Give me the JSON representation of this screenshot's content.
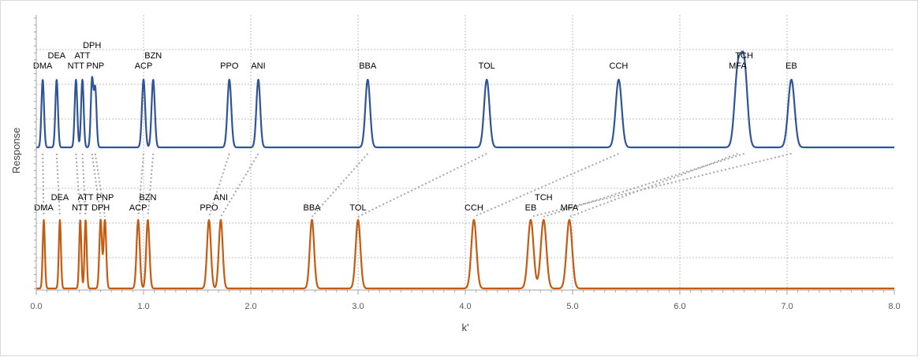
{
  "chart_data": {
    "type": "line",
    "xlabel": "k'",
    "ylabel": "Response",
    "xlim": [
      0,
      8
    ],
    "x_ticks": [
      "0.0",
      "1.0",
      "2.0",
      "3.0",
      "4.0",
      "5.0",
      "6.0",
      "7.0",
      "8.0"
    ],
    "x_minor_step": 0.1,
    "grid": "dotted vertical lines at 1.0 steps; dotted horizontal lines in each trace band",
    "colors": {
      "top": "#2f5597",
      "bottom": "#c55a11",
      "connector": "#a6a6a6",
      "grid": "#bfbfbf"
    },
    "series": [
      {
        "peaks": [
          {
            "label": "DMA",
            "k": 0.06,
            "h": 1.0,
            "w": 0.012
          },
          {
            "label": "DEA",
            "k": 0.19,
            "h": 1.0,
            "w": 0.012
          },
          {
            "label": "NTT",
            "k": 0.37,
            "h": 1.0,
            "w": 0.012
          },
          {
            "label": "ATT",
            "k": 0.43,
            "h": 1.0,
            "w": 0.012
          },
          {
            "label": "DPH",
            "k": 0.52,
            "h": 1.0,
            "w": 0.012
          },
          {
            "label": "PNP",
            "k": 0.55,
            "h": 0.86,
            "w": 0.012
          },
          {
            "label": "ACP",
            "k": 1.0,
            "h": 1.0,
            "w": 0.015
          },
          {
            "label": "BZN",
            "k": 1.09,
            "h": 1.0,
            "w": 0.015
          },
          {
            "label": "PPO",
            "k": 1.8,
            "h": 1.0,
            "w": 0.018
          },
          {
            "label": "ANI",
            "k": 2.07,
            "h": 1.0,
            "w": 0.018
          },
          {
            "label": "BBA",
            "k": 3.09,
            "h": 1.0,
            "w": 0.022
          },
          {
            "label": "TOL",
            "k": 4.2,
            "h": 1.0,
            "w": 0.025
          },
          {
            "label": "CCH",
            "k": 5.43,
            "h": 1.0,
            "w": 0.028
          },
          {
            "label": "MFA",
            "k": 6.54,
            "h": 1.1,
            "w": 0.03
          },
          {
            "label": "TCH",
            "k": 6.6,
            "h": 1.2,
            "w": 0.03
          },
          {
            "label": "EB",
            "k": 7.04,
            "h": 1.0,
            "w": 0.03
          }
        ]
      },
      {
        "peaks": [
          {
            "label": "DMA",
            "k": 0.07,
            "h": 1.0,
            "w": 0.01
          },
          {
            "label": "DEA",
            "k": 0.22,
            "h": 1.0,
            "w": 0.01
          },
          {
            "label": "NTT",
            "k": 0.41,
            "h": 1.0,
            "w": 0.01
          },
          {
            "label": "ATT",
            "k": 0.46,
            "h": 1.0,
            "w": 0.01
          },
          {
            "label": "DPH",
            "k": 0.6,
            "h": 1.0,
            "w": 0.012
          },
          {
            "label": "PNP",
            "k": 0.64,
            "h": 1.0,
            "w": 0.012
          },
          {
            "label": "ACP",
            "k": 0.95,
            "h": 1.0,
            "w": 0.015
          },
          {
            "label": "BZN",
            "k": 1.04,
            "h": 1.0,
            "w": 0.015
          },
          {
            "label": "PPO",
            "k": 1.61,
            "h": 1.0,
            "w": 0.018
          },
          {
            "label": "ANI",
            "k": 1.72,
            "h": 1.0,
            "w": 0.018
          },
          {
            "label": "BBA",
            "k": 2.57,
            "h": 1.0,
            "w": 0.02
          },
          {
            "label": "TOL",
            "k": 3.0,
            "h": 1.0,
            "w": 0.022
          },
          {
            "label": "CCH",
            "k": 4.08,
            "h": 1.0,
            "w": 0.024
          },
          {
            "label": "EB",
            "k": 4.61,
            "h": 1.0,
            "w": 0.026
          },
          {
            "label": "TCH",
            "k": 4.73,
            "h": 1.0,
            "w": 0.026
          },
          {
            "label": "MFA",
            "k": 4.97,
            "h": 1.0,
            "w": 0.026
          }
        ]
      }
    ]
  }
}
